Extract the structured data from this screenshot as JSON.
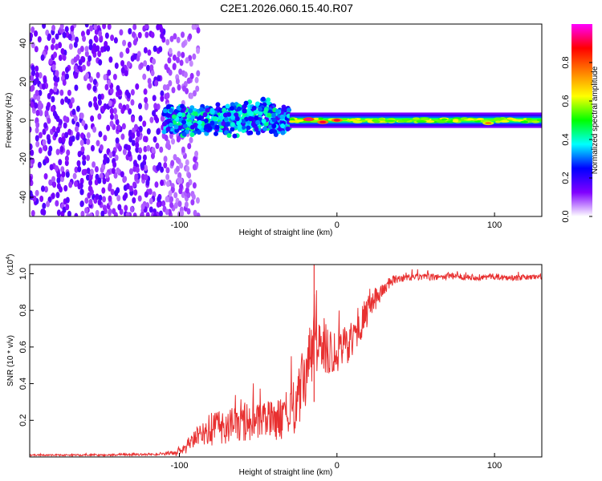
{
  "chart_data": [
    {
      "type": "heatmap",
      "title": "C2E1.2026.060.15.40.R07",
      "xlabel": "Height of straight line (km)",
      "ylabel": "Frequency (Hz)",
      "xlim": [
        -195,
        130
      ],
      "ylim": [
        -50,
        50
      ],
      "xticks": [
        -100,
        0,
        100
      ],
      "yticks": [
        -40,
        -20,
        0,
        20,
        40
      ],
      "colorbar": {
        "label": "Normalized spectral amplitude",
        "range": [
          0,
          1
        ],
        "ticks": [
          "0.0",
          "0.2",
          "0.4",
          "0.6",
          "0.8"
        ],
        "tick_values": [
          0.0,
          0.2,
          0.4,
          0.6,
          0.8
        ],
        "colors": [
          "#ffffff",
          "#8000ff",
          "#0000ff",
          "#00ffff",
          "#00ff00",
          "#ffff00",
          "#ff8000",
          "#ff0000",
          "#ff00ff"
        ]
      },
      "regions": [
        {
          "name": "broadband noise",
          "x_range": [
            -195,
            -100
          ],
          "freq_range": [
            -50,
            50
          ],
          "amplitude": 0.1
        },
        {
          "name": "narrowband onset",
          "x_range": [
            -110,
            -30
          ],
          "freq_center": 0,
          "freq_halfwidth": 9,
          "amplitude": 0.35
        },
        {
          "name": "steady narrow band",
          "x_range": [
            -30,
            130
          ],
          "freq_center": 0,
          "freq_halfwidth": 4,
          "amplitude": 0.45
        }
      ],
      "peaks": [
        {
          "x": -18,
          "freq": 0.5,
          "amplitude": 0.95
        },
        {
          "x": -9,
          "freq": -1,
          "amplitude": 0.9
        },
        {
          "x": 0,
          "freq": 0,
          "amplitude": 0.9
        },
        {
          "x": 96,
          "freq": -1.5,
          "amplitude": 0.75
        }
      ]
    },
    {
      "type": "line",
      "xlabel": "Height of straight line (km)",
      "ylabel": "SNR (10 * v/v)",
      "y_multiplier": "(x10",
      "y_multiplier_exp": "4",
      "y_multiplier_close": ")",
      "xlim": [
        -195,
        130
      ],
      "ylim": [
        0,
        1.05
      ],
      "xticks": [
        -100,
        0,
        100
      ],
      "yticks": [
        0.2,
        0.4,
        0.6,
        0.8,
        1.0
      ],
      "ytick_labels": [
        "0.2",
        "0.4",
        "0.6",
        "0.8",
        "1.0"
      ],
      "color": "#e83030",
      "series": [
        {
          "name": "SNR",
          "x": [
            -195,
            -150,
            -110,
            -102,
            -100,
            -97,
            -95,
            -90,
            -85,
            -80,
            -75,
            -70,
            -65,
            -60,
            -55,
            -50,
            -45,
            -40,
            -35,
            -30,
            -25,
            -20,
            -15,
            -10,
            -5,
            0,
            5,
            10,
            15,
            20,
            25,
            30,
            35,
            40,
            50,
            60,
            70,
            80,
            90,
            100,
            110,
            120,
            130
          ],
          "y": [
            0.01,
            0.01,
            0.015,
            0.02,
            0.04,
            0.03,
            0.05,
            0.1,
            0.13,
            0.15,
            0.17,
            0.16,
            0.18,
            0.17,
            0.19,
            0.18,
            0.2,
            0.2,
            0.21,
            0.22,
            0.3,
            0.45,
            0.6,
            0.62,
            0.58,
            0.58,
            0.6,
            0.65,
            0.72,
            0.8,
            0.87,
            0.92,
            0.96,
            0.975,
            0.98,
            0.98,
            0.985,
            0.985,
            0.98,
            0.985,
            0.975,
            0.98,
            0.985
          ]
        }
      ],
      "noise_amplitude": {
        "x": [
          -195,
          -110,
          -100,
          -90,
          -80,
          -60,
          -40,
          -30,
          -20,
          -10,
          0,
          10,
          20,
          30,
          40,
          130
        ],
        "amp": [
          0.004,
          0.006,
          0.02,
          0.05,
          0.09,
          0.1,
          0.11,
          0.12,
          0.2,
          0.16,
          0.12,
          0.1,
          0.08,
          0.04,
          0.02,
          0.015
        ]
      },
      "annotations": [
        {
          "x": -14.5,
          "y": 1.05,
          "note": "spike reaching plot top"
        }
      ]
    }
  ]
}
